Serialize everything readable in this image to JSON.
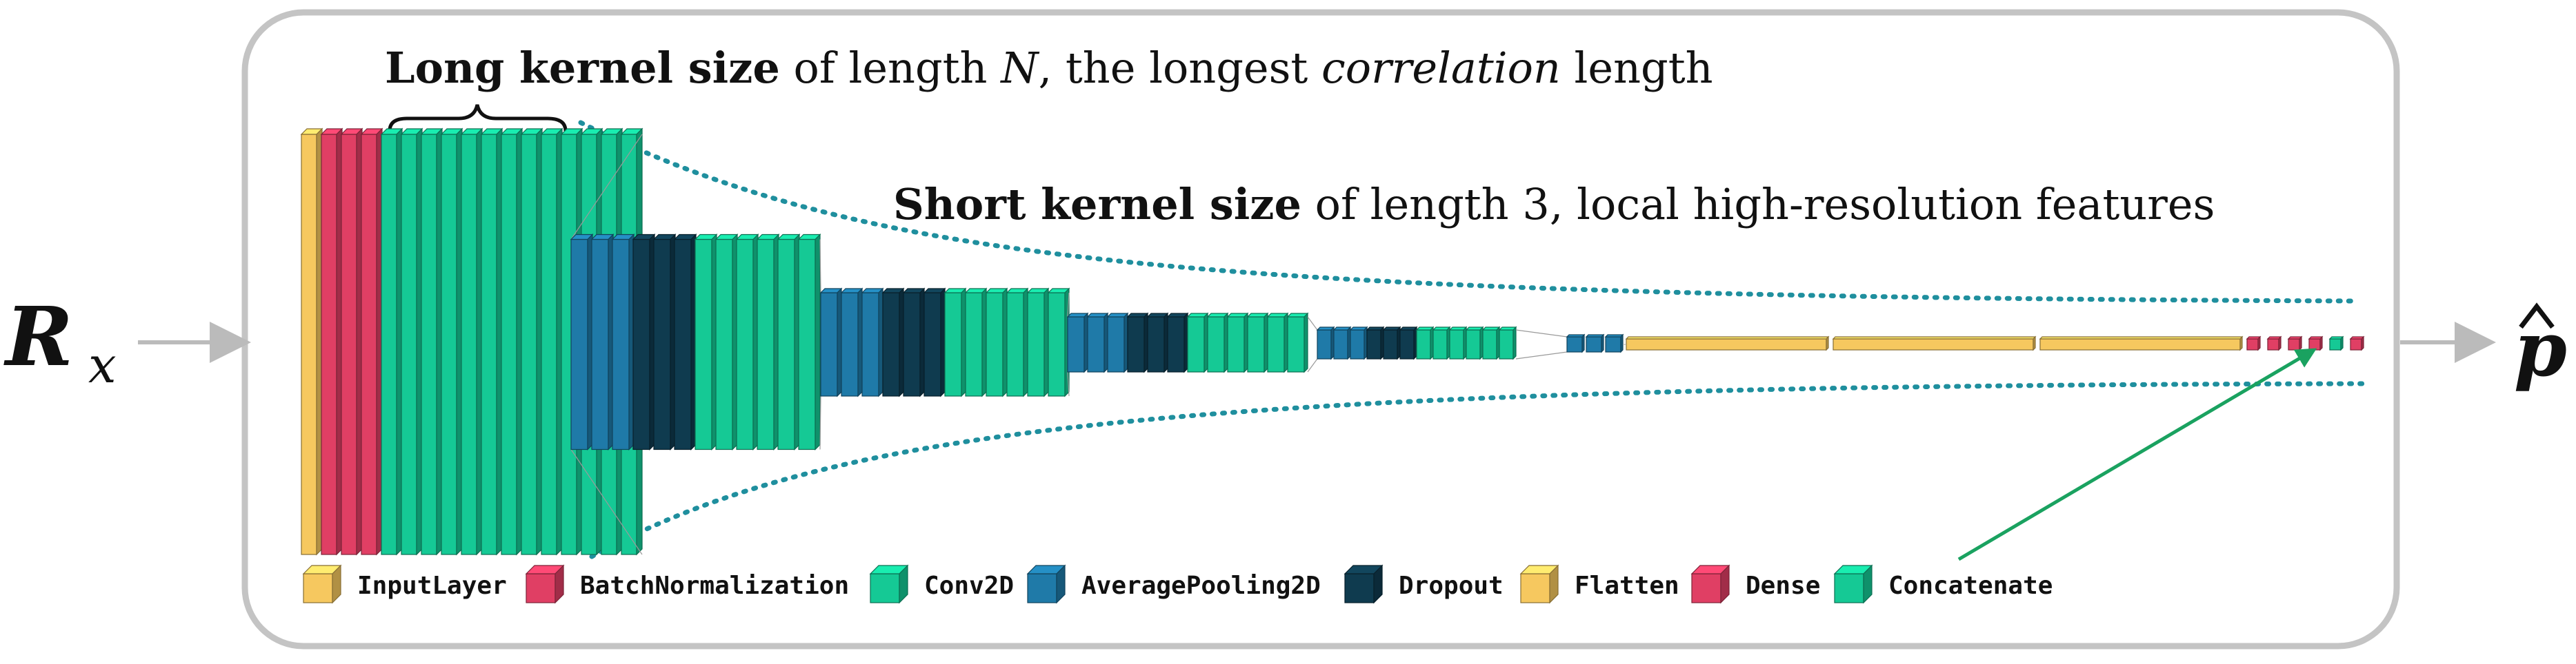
{
  "colors": {
    "frame": "#c0c0c0",
    "arrow": "#bbbbbb",
    "dotted": "#1f8f9e",
    "green_arrow": "#1aa260",
    "InputLayer": "#f6c85f",
    "BatchNormalization": "#e03f64",
    "Conv2D": "#15c995",
    "AveragePooling2D": "#1f7aa8",
    "Dropout": "#0f3b4f",
    "Flatten": "#f6c85f",
    "Dense": "#e03f64",
    "Concatenate": "#15c995"
  },
  "input_symbol": {
    "main": "R",
    "sub": "x"
  },
  "output_symbol": {
    "main": "p"
  },
  "annotation_long": {
    "bold": "Long kernel size",
    "pre": " of length ",
    "var": "N",
    "mid": ", the longest ",
    "ital": "correlation",
    "post": " length"
  },
  "annotation_short": {
    "bold": "Short kernel size",
    "rest": " of length 3, local high-resolution features"
  },
  "legend": [
    {
      "label": "InputLayer",
      "color_key": "InputLayer"
    },
    {
      "label": "BatchNormalization",
      "color_key": "BatchNormalization"
    },
    {
      "label": "Conv2D",
      "color_key": "Conv2D"
    },
    {
      "label": "AveragePooling2D",
      "color_key": "AveragePooling2D"
    },
    {
      "label": "Dropout",
      "color_key": "Dropout"
    },
    {
      "label": "Flatten",
      "color_key": "Flatten"
    },
    {
      "label": "Dense",
      "color_key": "Dense"
    },
    {
      "label": "Concatenate",
      "color_key": "Concatenate"
    }
  ],
  "layer_stages": [
    {
      "layers": [
        "InputLayer",
        "BatchNormalization",
        "BatchNormalization",
        "BatchNormalization",
        "Conv2D",
        "Conv2D",
        "Conv2D",
        "Conv2D",
        "Conv2D",
        "Conv2D",
        "Conv2D",
        "Conv2D",
        "Conv2D",
        "Conv2D",
        "Conv2D",
        "Conv2D",
        "Conv2D"
      ]
    },
    {
      "layers": [
        "AveragePooling2D",
        "AveragePooling2D",
        "AveragePooling2D",
        "Dropout",
        "Dropout",
        "Dropout",
        "Conv2D",
        "Conv2D",
        "Conv2D",
        "Conv2D",
        "Conv2D",
        "Conv2D"
      ]
    },
    {
      "layers": [
        "AveragePooling2D",
        "AveragePooling2D",
        "AveragePooling2D",
        "Dropout",
        "Dropout",
        "Dropout",
        "Conv2D",
        "Conv2D",
        "Conv2D",
        "Conv2D",
        "Conv2D",
        "Conv2D"
      ]
    },
    {
      "layers": [
        "AveragePooling2D",
        "AveragePooling2D",
        "AveragePooling2D",
        "Dropout",
        "Dropout",
        "Dropout",
        "Conv2D",
        "Conv2D",
        "Conv2D",
        "Conv2D",
        "Conv2D",
        "Conv2D"
      ]
    },
    {
      "layers": [
        "AveragePooling2D",
        "AveragePooling2D",
        "AveragePooling2D",
        "Dropout",
        "Dropout",
        "Dropout",
        "Conv2D",
        "Conv2D",
        "Conv2D",
        "Conv2D",
        "Conv2D",
        "Conv2D"
      ]
    },
    {
      "layers": [
        "AveragePooling2D",
        "AveragePooling2D",
        "AveragePooling2D"
      ]
    },
    {
      "layers": [
        "Flatten",
        "Flatten",
        "Flatten",
        "Dense",
        "Dense",
        "Dense",
        "Dense",
        "Concatenate",
        "Dense"
      ]
    }
  ]
}
